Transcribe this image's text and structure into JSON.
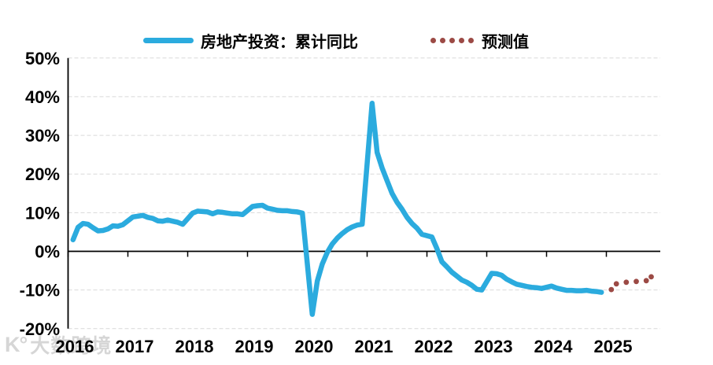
{
  "legend": {
    "actual_label": "房地产投资：累计同比",
    "forecast_label": "预测值"
  },
  "watermark": {
    "logo_text": "K°",
    "brand_text": "大数跨境"
  },
  "colors": {
    "actual_line": "#2BABDE",
    "forecast_dots": "#9C4A45",
    "gridline": "#D9D9D9",
    "axis": "#000000"
  },
  "chart_data": {
    "type": "line",
    "title": "",
    "xlabel": "",
    "ylabel": "",
    "ylim": [
      -20,
      50
    ],
    "grid": "horizontal-dashed",
    "legend_position": "top-center",
    "yticks": [
      50,
      40,
      30,
      20,
      10,
      0,
      -10,
      -20
    ],
    "ytick_suffix": "%",
    "xticks": [
      2016,
      2017,
      2018,
      2019,
      2020,
      2021,
      2022,
      2023,
      2024,
      2025
    ],
    "series": [
      {
        "name": "房地产投资：累计同比",
        "type": "line",
        "color": "#2BABDE",
        "points": [
          [
            2016,
            2,
            3.0
          ],
          [
            2016,
            3,
            6.2
          ],
          [
            2016,
            4,
            7.2
          ],
          [
            2016,
            5,
            7.0
          ],
          [
            2016,
            6,
            6.1
          ],
          [
            2016,
            7,
            5.3
          ],
          [
            2016,
            8,
            5.4
          ],
          [
            2016,
            9,
            5.8
          ],
          [
            2016,
            10,
            6.6
          ],
          [
            2016,
            11,
            6.5
          ],
          [
            2016,
            12,
            6.9
          ],
          [
            2017,
            2,
            8.9
          ],
          [
            2017,
            3,
            9.1
          ],
          [
            2017,
            4,
            9.3
          ],
          [
            2017,
            5,
            8.8
          ],
          [
            2017,
            6,
            8.5
          ],
          [
            2017,
            7,
            7.9
          ],
          [
            2017,
            8,
            7.8
          ],
          [
            2017,
            9,
            8.1
          ],
          [
            2017,
            10,
            7.8
          ],
          [
            2017,
            11,
            7.5
          ],
          [
            2017,
            12,
            7.0
          ],
          [
            2018,
            2,
            9.9
          ],
          [
            2018,
            3,
            10.4
          ],
          [
            2018,
            4,
            10.3
          ],
          [
            2018,
            5,
            10.2
          ],
          [
            2018,
            6,
            9.7
          ],
          [
            2018,
            7,
            10.2
          ],
          [
            2018,
            8,
            10.1
          ],
          [
            2018,
            9,
            9.9
          ],
          [
            2018,
            10,
            9.7
          ],
          [
            2018,
            11,
            9.7
          ],
          [
            2018,
            12,
            9.5
          ],
          [
            2019,
            2,
            11.6
          ],
          [
            2019,
            3,
            11.8
          ],
          [
            2019,
            4,
            11.9
          ],
          [
            2019,
            5,
            11.2
          ],
          [
            2019,
            6,
            10.9
          ],
          [
            2019,
            7,
            10.6
          ],
          [
            2019,
            8,
            10.5
          ],
          [
            2019,
            9,
            10.5
          ],
          [
            2019,
            10,
            10.3
          ],
          [
            2019,
            11,
            10.2
          ],
          [
            2019,
            12,
            9.9
          ],
          [
            2020,
            2,
            -16.3
          ],
          [
            2020,
            3,
            -7.7
          ],
          [
            2020,
            4,
            -3.3
          ],
          [
            2020,
            5,
            -0.3
          ],
          [
            2020,
            6,
            1.9
          ],
          [
            2020,
            7,
            3.4
          ],
          [
            2020,
            8,
            4.6
          ],
          [
            2020,
            9,
            5.6
          ],
          [
            2020,
            10,
            6.3
          ],
          [
            2020,
            11,
            6.8
          ],
          [
            2020,
            12,
            7.0
          ],
          [
            2021,
            2,
            38.3
          ],
          [
            2021,
            3,
            25.6
          ],
          [
            2021,
            4,
            21.6
          ],
          [
            2021,
            5,
            18.3
          ],
          [
            2021,
            6,
            15.0
          ],
          [
            2021,
            7,
            12.7
          ],
          [
            2021,
            8,
            10.9
          ],
          [
            2021,
            9,
            8.8
          ],
          [
            2021,
            10,
            7.2
          ],
          [
            2021,
            11,
            6.0
          ],
          [
            2021,
            12,
            4.4
          ],
          [
            2022,
            2,
            3.7
          ],
          [
            2022,
            3,
            0.7
          ],
          [
            2022,
            4,
            -2.7
          ],
          [
            2022,
            5,
            -4.0
          ],
          [
            2022,
            6,
            -5.4
          ],
          [
            2022,
            7,
            -6.4
          ],
          [
            2022,
            8,
            -7.4
          ],
          [
            2022,
            9,
            -8.0
          ],
          [
            2022,
            10,
            -8.8
          ],
          [
            2022,
            11,
            -9.8
          ],
          [
            2022,
            12,
            -10.0
          ],
          [
            2023,
            2,
            -5.7
          ],
          [
            2023,
            3,
            -5.8
          ],
          [
            2023,
            4,
            -6.2
          ],
          [
            2023,
            5,
            -7.2
          ],
          [
            2023,
            6,
            -7.9
          ],
          [
            2023,
            7,
            -8.5
          ],
          [
            2023,
            8,
            -8.8
          ],
          [
            2023,
            9,
            -9.1
          ],
          [
            2023,
            10,
            -9.3
          ],
          [
            2023,
            11,
            -9.4
          ],
          [
            2023,
            12,
            -9.6
          ],
          [
            2024,
            2,
            -9.0
          ],
          [
            2024,
            3,
            -9.5
          ],
          [
            2024,
            4,
            -9.8
          ],
          [
            2024,
            5,
            -10.1
          ],
          [
            2024,
            6,
            -10.1
          ],
          [
            2024,
            7,
            -10.2
          ],
          [
            2024,
            8,
            -10.2
          ],
          [
            2024,
            9,
            -10.1
          ],
          [
            2024,
            10,
            -10.3
          ],
          [
            2024,
            11,
            -10.4
          ],
          [
            2024,
            12,
            -10.6
          ]
        ]
      },
      {
        "name": "预测值",
        "type": "dots",
        "color": "#9C4A45",
        "points": [
          [
            2025,
            2,
            -9.9
          ],
          [
            2025,
            3,
            -8.4
          ],
          [
            2025,
            5,
            -8.0
          ],
          [
            2025,
            7,
            -7.8
          ],
          [
            2025,
            9,
            -7.6
          ],
          [
            2025,
            10,
            -6.6
          ]
        ]
      }
    ]
  }
}
